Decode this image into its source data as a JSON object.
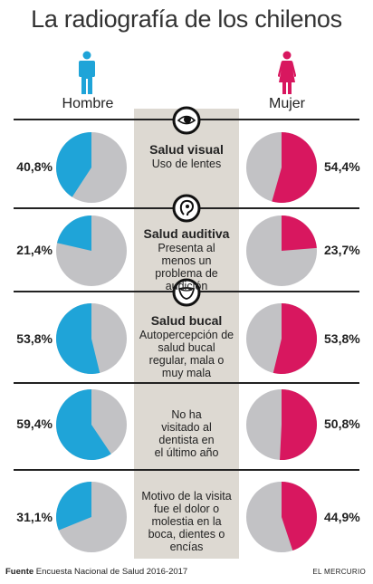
{
  "title": "La radiografía de los chilenos",
  "labels": {
    "left": "Hombre",
    "right": "Mujer"
  },
  "colors": {
    "male": "#1fa4d8",
    "female": "#d8175f",
    "gray": "#c2c2c5",
    "band": "#ddd9d2"
  },
  "icons": {
    "male": "man-figure-icon",
    "female": "woman-figure-icon",
    "eye": "eye-icon",
    "ear": "ear-icon",
    "mouth": "mouth-icon"
  },
  "rows": [
    {
      "heading": "Salud visual",
      "desc": "Uso de lentes",
      "left": "40,8%",
      "right": "54,4%"
    },
    {
      "heading": "Salud auditiva",
      "desc": "Presenta al menos un problema de audición",
      "left": "21,4%",
      "right": "23,7%"
    },
    {
      "heading": "Salud bucal",
      "desc": "Autopercepción de salud bucal regular, mala o muy mala",
      "left": "53,8%",
      "right": "53,8%"
    },
    {
      "heading": "",
      "desc": "No ha visitado al dentista en el último año",
      "left": "59,4%",
      "right": "50,8%"
    },
    {
      "heading": "",
      "desc": "Motivo de la visita fue el dolor o molestia en la boca, dientes o encías",
      "left": "31,1%",
      "right": "44,9%"
    }
  ],
  "chart_data": {
    "type": "pie",
    "categories": [
      "Uso de lentes",
      "Presenta al menos un problema de audición",
      "Autopercepción de salud bucal regular, mala o muy mala",
      "No ha visitado al dentista en el último año",
      "Motivo de la visita fue el dolor o molestia en la boca, dientes o encías"
    ],
    "series": [
      {
        "name": "Hombre",
        "values": [
          40.8,
          21.4,
          53.8,
          59.4,
          31.1
        ]
      },
      {
        "name": "Mujer",
        "values": [
          54.4,
          23.7,
          53.8,
          50.8,
          44.9
        ]
      }
    ]
  },
  "footer": {
    "source_label": "Fuente",
    "source_text": "Encuesta Nacional de Salud 2016-2017",
    "brand": "EL MERCURIO"
  }
}
